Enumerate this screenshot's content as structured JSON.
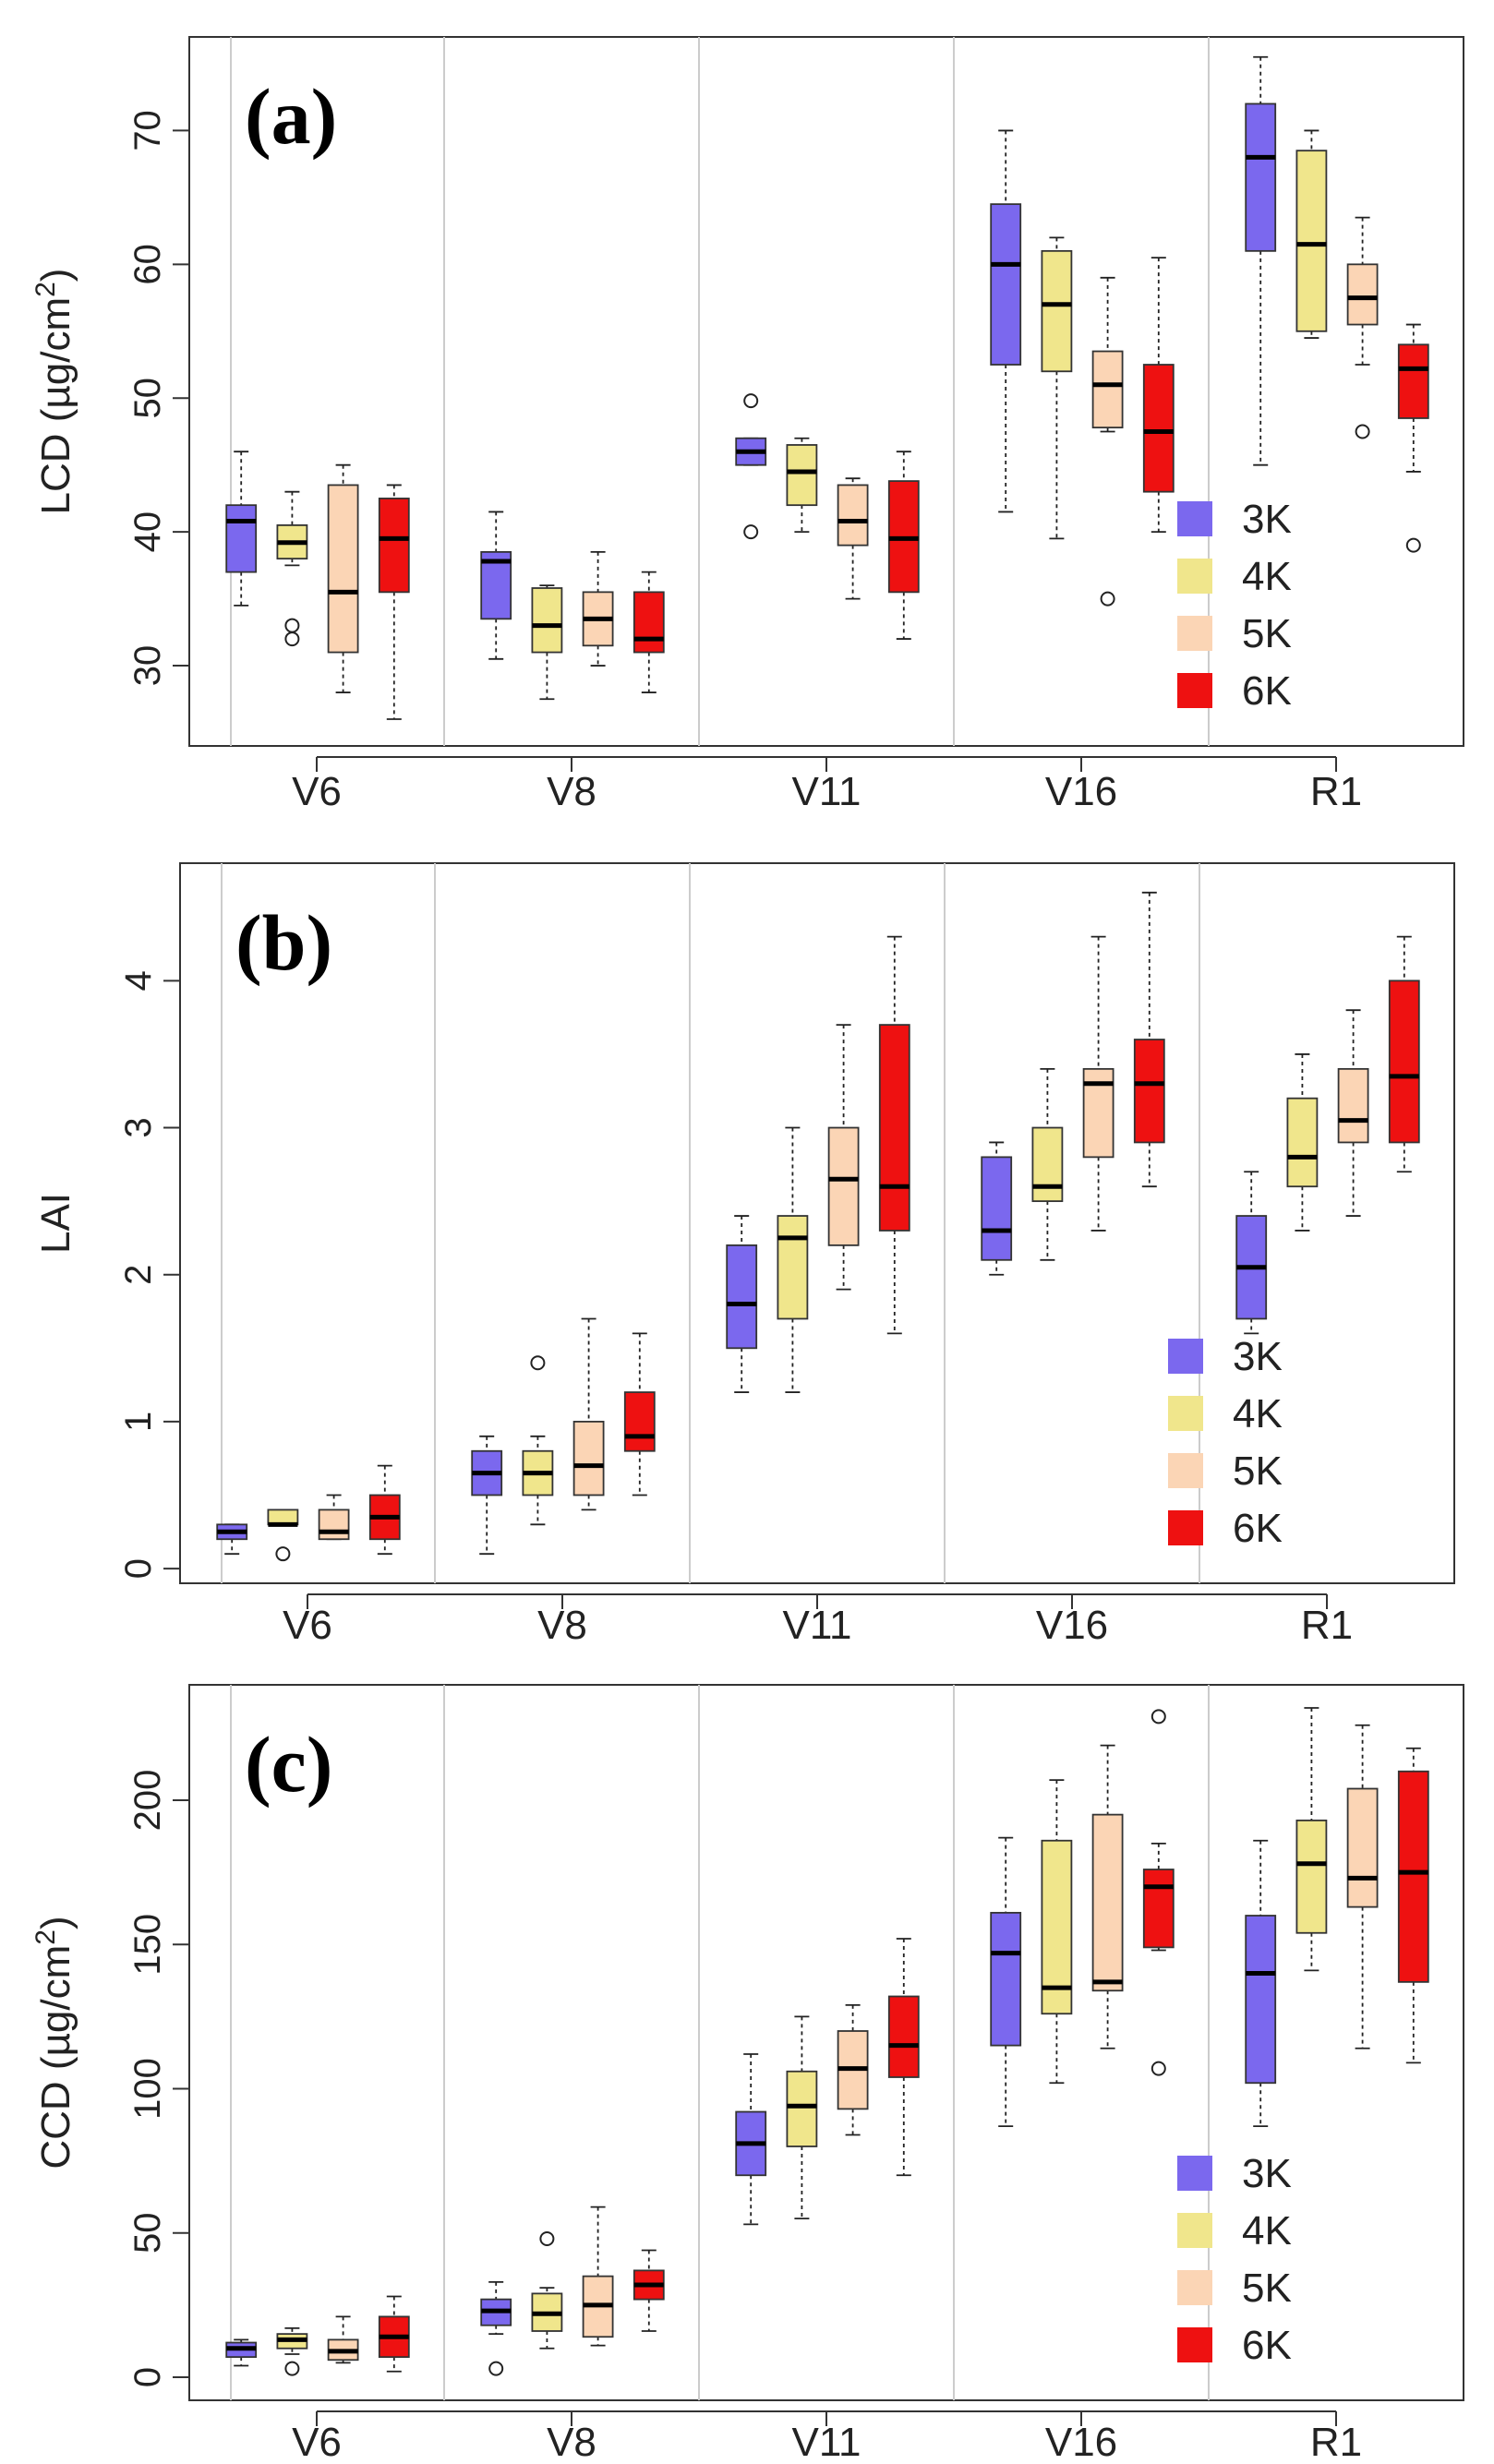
{
  "chart_data": [
    {
      "type": "box",
      "panel_label": "(a)",
      "ylabel": "LCD (µg/cm",
      "ylabel_sup": "2",
      "ylabel_close": ")",
      "ylim": [
        24,
        77
      ],
      "yticks": [
        30,
        40,
        50,
        60,
        70
      ],
      "groups": [
        "V6",
        "V8",
        "V11",
        "V16",
        "R1"
      ],
      "legend": [
        "3K",
        "4K",
        "5K",
        "6K"
      ],
      "legend_position": "bottom-right",
      "colors": [
        "#7b68ee",
        "#f0e68c",
        "#fbd5b5",
        "#ee1111"
      ],
      "boxes": [
        [
          {
            "min": 34.5,
            "q1": 37,
            "median": 40.8,
            "q3": 42,
            "max": 46,
            "outliers": []
          },
          {
            "min": 37.5,
            "q1": 38,
            "median": 39.2,
            "q3": 40.5,
            "max": 43,
            "outliers": [
              33,
              32
            ]
          },
          {
            "min": 28,
            "q1": 31,
            "median": 35.5,
            "q3": 43.5,
            "max": 45,
            "outliers": []
          },
          {
            "min": 26,
            "q1": 35.5,
            "median": 39.5,
            "q3": 42.5,
            "max": 43.5,
            "outliers": []
          }
        ],
        [
          {
            "min": 30.5,
            "q1": 33.5,
            "median": 37.8,
            "q3": 38.5,
            "max": 41.5,
            "outliers": []
          },
          {
            "min": 27.5,
            "q1": 31,
            "median": 33,
            "q3": 35.8,
            "max": 36,
            "outliers": []
          },
          {
            "min": 30,
            "q1": 31.5,
            "median": 33.5,
            "q3": 35.5,
            "max": 38.5,
            "outliers": []
          },
          {
            "min": 28,
            "q1": 31,
            "median": 32,
            "q3": 35.5,
            "max": 37,
            "outliers": []
          }
        ],
        [
          {
            "min": 45,
            "q1": 45,
            "median": 46,
            "q3": 47,
            "max": 47,
            "outliers": [
              49.8,
              40
            ]
          },
          {
            "min": 40,
            "q1": 42,
            "median": 44.5,
            "q3": 46.5,
            "max": 47,
            "outliers": []
          },
          {
            "min": 35,
            "q1": 39,
            "median": 40.8,
            "q3": 43.5,
            "max": 44,
            "outliers": []
          },
          {
            "min": 32,
            "q1": 35.5,
            "median": 39.5,
            "q3": 43.8,
            "max": 46,
            "outliers": []
          }
        ],
        [
          {
            "min": 41.5,
            "q1": 52.5,
            "median": 60,
            "q3": 64.5,
            "max": 70,
            "outliers": []
          },
          {
            "min": 39.5,
            "q1": 52,
            "median": 57,
            "q3": 61,
            "max": 62,
            "outliers": []
          },
          {
            "min": 47.5,
            "q1": 47.8,
            "median": 51,
            "q3": 53.5,
            "max": 59,
            "outliers": [
              35
            ]
          },
          {
            "min": 40,
            "q1": 43,
            "median": 47.5,
            "q3": 52.5,
            "max": 60.5,
            "outliers": []
          }
        ],
        [
          {
            "min": 45,
            "q1": 61,
            "median": 68,
            "q3": 72,
            "max": 75.5,
            "outliers": []
          },
          {
            "min": 54.5,
            "q1": 55,
            "median": 61.5,
            "q3": 68.5,
            "max": 70,
            "outliers": []
          },
          {
            "min": 52.5,
            "q1": 55.5,
            "median": 57.5,
            "q3": 60,
            "max": 63.5,
            "outliers": [
              47.5
            ]
          },
          {
            "min": 44.5,
            "q1": 48.5,
            "median": 52.2,
            "q3": 54,
            "max": 55.5,
            "outliers": [
              39
            ]
          }
        ]
      ]
    },
    {
      "type": "box",
      "panel_label": "(b)",
      "ylabel": "LAI",
      "ylabel_sup": "",
      "ylabel_close": "",
      "ylim": [
        -0.1,
        4.8
      ],
      "yticks": [
        0,
        1,
        2,
        3,
        4
      ],
      "groups": [
        "V6",
        "V8",
        "V11",
        "V16",
        "R1"
      ],
      "legend": [
        "3K",
        "4K",
        "5K",
        "6K"
      ],
      "legend_position": "bottom-right",
      "colors": [
        "#7b68ee",
        "#f0e68c",
        "#fbd5b5",
        "#ee1111"
      ],
      "boxes": [
        [
          {
            "min": 0.1,
            "q1": 0.2,
            "median": 0.25,
            "q3": 0.3,
            "max": 0.3,
            "outliers": []
          },
          {
            "min": 0.3,
            "q1": 0.3,
            "median": 0.3,
            "q3": 0.4,
            "max": 0.4,
            "outliers": [
              0.1
            ]
          },
          {
            "min": 0.2,
            "q1": 0.2,
            "median": 0.25,
            "q3": 0.4,
            "max": 0.5,
            "outliers": []
          },
          {
            "min": 0.1,
            "q1": 0.2,
            "median": 0.35,
            "q3": 0.5,
            "max": 0.7,
            "outliers": []
          }
        ],
        [
          {
            "min": 0.1,
            "q1": 0.5,
            "median": 0.65,
            "q3": 0.8,
            "max": 0.9,
            "outliers": []
          },
          {
            "min": 0.3,
            "q1": 0.5,
            "median": 0.65,
            "q3": 0.8,
            "max": 0.9,
            "outliers": [
              1.4
            ]
          },
          {
            "min": 0.4,
            "q1": 0.5,
            "median": 0.7,
            "q3": 1.0,
            "max": 1.7,
            "outliers": []
          },
          {
            "min": 0.5,
            "q1": 0.8,
            "median": 0.9,
            "q3": 1.2,
            "max": 1.6,
            "outliers": []
          }
        ],
        [
          {
            "min": 1.2,
            "q1": 1.5,
            "median": 1.8,
            "q3": 2.2,
            "max": 2.4,
            "outliers": []
          },
          {
            "min": 1.2,
            "q1": 1.7,
            "median": 2.25,
            "q3": 2.4,
            "max": 3.0,
            "outliers": []
          },
          {
            "min": 1.9,
            "q1": 2.2,
            "median": 2.65,
            "q3": 3.0,
            "max": 3.7,
            "outliers": []
          },
          {
            "min": 1.6,
            "q1": 2.3,
            "median": 2.6,
            "q3": 3.7,
            "max": 4.3,
            "outliers": []
          }
        ],
        [
          {
            "min": 2.0,
            "q1": 2.1,
            "median": 2.3,
            "q3": 2.8,
            "max": 2.9,
            "outliers": []
          },
          {
            "min": 2.1,
            "q1": 2.5,
            "median": 2.6,
            "q3": 3.0,
            "max": 3.4,
            "outliers": []
          },
          {
            "min": 2.3,
            "q1": 2.8,
            "median": 3.3,
            "q3": 3.4,
            "max": 4.3,
            "outliers": []
          },
          {
            "min": 2.6,
            "q1": 2.9,
            "median": 3.3,
            "q3": 3.6,
            "max": 4.6,
            "outliers": []
          }
        ],
        [
          {
            "min": 1.6,
            "q1": 1.7,
            "median": 2.05,
            "q3": 2.4,
            "max": 2.7,
            "outliers": []
          },
          {
            "min": 2.3,
            "q1": 2.6,
            "median": 2.8,
            "q3": 3.2,
            "max": 3.5,
            "outliers": []
          },
          {
            "min": 2.4,
            "q1": 2.9,
            "median": 3.05,
            "q3": 3.4,
            "max": 3.8,
            "outliers": []
          },
          {
            "min": 2.7,
            "q1": 2.9,
            "median": 3.35,
            "q3": 4.0,
            "max": 4.3,
            "outliers": []
          }
        ]
      ]
    },
    {
      "type": "box",
      "panel_label": "(c)",
      "ylabel": "CCD (µg/cm",
      "ylabel_sup": "2",
      "ylabel_close": ")",
      "ylim": [
        -8,
        240
      ],
      "yticks": [
        0,
        50,
        100,
        150,
        200
      ],
      "groups": [
        "V6",
        "V8",
        "V11",
        "V16",
        "R1"
      ],
      "legend": [
        "3K",
        "4K",
        "5K",
        "6K"
      ],
      "legend_position": "bottom-right",
      "colors": [
        "#7b68ee",
        "#f0e68c",
        "#fbd5b5",
        "#ee1111"
      ],
      "boxes": [
        [
          {
            "min": 4,
            "q1": 7,
            "median": 10,
            "q3": 12,
            "max": 13,
            "outliers": []
          },
          {
            "min": 8,
            "q1": 10,
            "median": 13,
            "q3": 15,
            "max": 17,
            "outliers": [
              3
            ]
          },
          {
            "min": 5,
            "q1": 6,
            "median": 9,
            "q3": 13,
            "max": 21,
            "outliers": []
          },
          {
            "min": 2,
            "q1": 7,
            "median": 14,
            "q3": 21,
            "max": 28,
            "outliers": []
          }
        ],
        [
          {
            "min": 15,
            "q1": 18,
            "median": 23,
            "q3": 27,
            "max": 33,
            "outliers": [
              3
            ]
          },
          {
            "min": 10,
            "q1": 16,
            "median": 22,
            "q3": 29,
            "max": 31,
            "outliers": [
              48
            ]
          },
          {
            "min": 11,
            "q1": 14,
            "median": 25,
            "q3": 35,
            "max": 59,
            "outliers": []
          },
          {
            "min": 16,
            "q1": 27,
            "median": 32,
            "q3": 37,
            "max": 44,
            "outliers": []
          }
        ],
        [
          {
            "min": 53,
            "q1": 70,
            "median": 81,
            "q3": 92,
            "max": 112,
            "outliers": []
          },
          {
            "min": 55,
            "q1": 80,
            "median": 94,
            "q3": 106,
            "max": 125,
            "outliers": []
          },
          {
            "min": 84,
            "q1": 93,
            "median": 107,
            "q3": 120,
            "max": 129,
            "outliers": []
          },
          {
            "min": 70,
            "q1": 104,
            "median": 115,
            "q3": 132,
            "max": 152,
            "outliers": []
          }
        ],
        [
          {
            "min": 87,
            "q1": 115,
            "median": 147,
            "q3": 161,
            "max": 187,
            "outliers": []
          },
          {
            "min": 102,
            "q1": 126,
            "median": 135,
            "q3": 186,
            "max": 207,
            "outliers": []
          },
          {
            "min": 114,
            "q1": 134,
            "median": 137,
            "q3": 195,
            "max": 219,
            "outliers": []
          },
          {
            "min": 148,
            "q1": 149,
            "median": 170,
            "q3": 176,
            "max": 185,
            "outliers": [
              229,
              107
            ]
          }
        ],
        [
          {
            "min": 87,
            "q1": 102,
            "median": 140,
            "q3": 160,
            "max": 186,
            "outliers": []
          },
          {
            "min": 141,
            "q1": 154,
            "median": 178,
            "q3": 193,
            "max": 232,
            "outliers": []
          },
          {
            "min": 114,
            "q1": 163,
            "median": 173,
            "q3": 204,
            "max": 226,
            "outliers": []
          },
          {
            "min": 109,
            "q1": 137,
            "median": 175,
            "q3": 210,
            "max": 218,
            "outliers": []
          }
        ]
      ]
    }
  ]
}
